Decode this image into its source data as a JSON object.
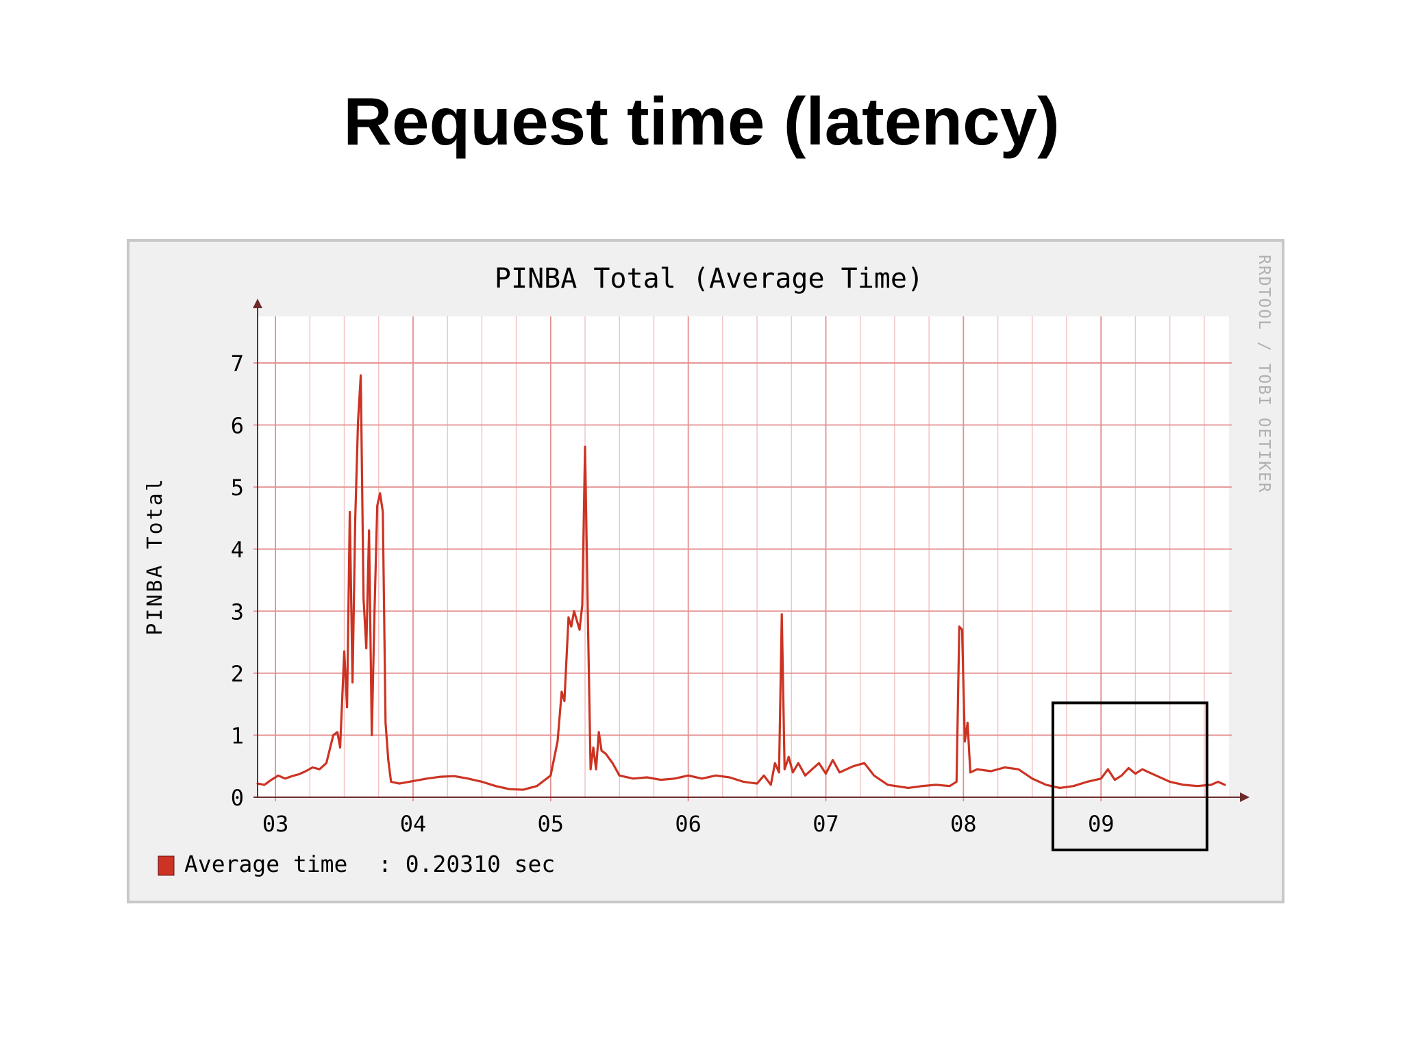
{
  "slide": {
    "title": "Request time (latency)"
  },
  "chart_data": {
    "type": "line",
    "title": "PINBA Total (Average Time)",
    "ylabel": "PINBA Total",
    "xlabel": "",
    "watermark": "RRDTOOL / TOBI OETIKER",
    "ylim": [
      0,
      7.75
    ],
    "xlim": [
      2.87,
      9.93
    ],
    "yticks": [
      "0",
      "1",
      "2",
      "3",
      "4",
      "5",
      "6",
      "7"
    ],
    "xticks": [
      "03",
      "04",
      "05",
      "06",
      "07",
      "08",
      "09"
    ],
    "grid": true,
    "colors": {
      "line": "#cc3322",
      "major_grid": "#e48e8e",
      "minor_grid": "#f2c4c4",
      "axis": "#6e2a2a",
      "plot_bg": "#ffffff",
      "canvas_bg": "#f0f0f0",
      "highlight_box": "#000000"
    },
    "legend": {
      "position": "bottom-left",
      "label": "Average time",
      "value_text": ": 0.20310 sec",
      "color": "#cc3322"
    },
    "highlight": {
      "x_range": [
        8.65,
        9.77
      ],
      "y_range": [
        -0.85,
        1.52
      ]
    },
    "series": [
      {
        "name": "Average time",
        "points": [
          [
            2.87,
            0.22
          ],
          [
            2.92,
            0.2
          ],
          [
            2.97,
            0.28
          ],
          [
            3.02,
            0.35
          ],
          [
            3.07,
            0.3
          ],
          [
            3.12,
            0.34
          ],
          [
            3.17,
            0.37
          ],
          [
            3.22,
            0.42
          ],
          [
            3.27,
            0.48
          ],
          [
            3.32,
            0.45
          ],
          [
            3.37,
            0.55
          ],
          [
            3.42,
            1.0
          ],
          [
            3.45,
            1.05
          ],
          [
            3.47,
            0.8
          ],
          [
            3.5,
            2.35
          ],
          [
            3.52,
            1.45
          ],
          [
            3.54,
            4.6
          ],
          [
            3.56,
            1.85
          ],
          [
            3.58,
            4.5
          ],
          [
            3.6,
            6.05
          ],
          [
            3.62,
            6.8
          ],
          [
            3.64,
            3.2
          ],
          [
            3.66,
            2.4
          ],
          [
            3.68,
            4.3
          ],
          [
            3.7,
            1.0
          ],
          [
            3.72,
            3.0
          ],
          [
            3.74,
            4.7
          ],
          [
            3.76,
            4.9
          ],
          [
            3.78,
            4.6
          ],
          [
            3.8,
            1.2
          ],
          [
            3.82,
            0.6
          ],
          [
            3.84,
            0.25
          ],
          [
            3.9,
            0.22
          ],
          [
            4.0,
            0.26
          ],
          [
            4.1,
            0.3
          ],
          [
            4.2,
            0.33
          ],
          [
            4.3,
            0.34
          ],
          [
            4.4,
            0.3
          ],
          [
            4.5,
            0.25
          ],
          [
            4.6,
            0.18
          ],
          [
            4.7,
            0.13
          ],
          [
            4.8,
            0.12
          ],
          [
            4.9,
            0.18
          ],
          [
            5.0,
            0.35
          ],
          [
            5.05,
            0.9
          ],
          [
            5.08,
            1.7
          ],
          [
            5.1,
            1.55
          ],
          [
            5.13,
            2.9
          ],
          [
            5.15,
            2.75
          ],
          [
            5.17,
            3.0
          ],
          [
            5.19,
            2.85
          ],
          [
            5.21,
            2.7
          ],
          [
            5.23,
            3.1
          ],
          [
            5.25,
            5.65
          ],
          [
            5.27,
            3.0
          ],
          [
            5.29,
            0.45
          ],
          [
            5.31,
            0.8
          ],
          [
            5.33,
            0.45
          ],
          [
            5.35,
            1.05
          ],
          [
            5.37,
            0.75
          ],
          [
            5.4,
            0.7
          ],
          [
            5.45,
            0.55
          ],
          [
            5.5,
            0.35
          ],
          [
            5.6,
            0.3
          ],
          [
            5.7,
            0.32
          ],
          [
            5.8,
            0.28
          ],
          [
            5.9,
            0.3
          ],
          [
            6.0,
            0.35
          ],
          [
            6.1,
            0.3
          ],
          [
            6.2,
            0.35
          ],
          [
            6.3,
            0.32
          ],
          [
            6.4,
            0.25
          ],
          [
            6.5,
            0.22
          ],
          [
            6.55,
            0.35
          ],
          [
            6.6,
            0.2
          ],
          [
            6.63,
            0.55
          ],
          [
            6.66,
            0.4
          ],
          [
            6.68,
            2.95
          ],
          [
            6.7,
            0.45
          ],
          [
            6.73,
            0.65
          ],
          [
            6.76,
            0.4
          ],
          [
            6.8,
            0.55
          ],
          [
            6.85,
            0.35
          ],
          [
            6.9,
            0.45
          ],
          [
            6.95,
            0.55
          ],
          [
            7.0,
            0.38
          ],
          [
            7.05,
            0.6
          ],
          [
            7.1,
            0.4
          ],
          [
            7.15,
            0.45
          ],
          [
            7.2,
            0.5
          ],
          [
            7.28,
            0.55
          ],
          [
            7.35,
            0.35
          ],
          [
            7.45,
            0.2
          ],
          [
            7.6,
            0.15
          ],
          [
            7.7,
            0.18
          ],
          [
            7.8,
            0.2
          ],
          [
            7.9,
            0.18
          ],
          [
            7.95,
            0.25
          ],
          [
            7.97,
            2.75
          ],
          [
            7.99,
            2.7
          ],
          [
            8.01,
            0.9
          ],
          [
            8.03,
            1.2
          ],
          [
            8.05,
            0.4
          ],
          [
            8.1,
            0.45
          ],
          [
            8.2,
            0.42
          ],
          [
            8.3,
            0.48
          ],
          [
            8.4,
            0.45
          ],
          [
            8.5,
            0.3
          ],
          [
            8.6,
            0.2
          ],
          [
            8.7,
            0.15
          ],
          [
            8.8,
            0.18
          ],
          [
            8.9,
            0.25
          ],
          [
            9.0,
            0.3
          ],
          [
            9.05,
            0.45
          ],
          [
            9.1,
            0.28
          ],
          [
            9.15,
            0.35
          ],
          [
            9.2,
            0.47
          ],
          [
            9.25,
            0.38
          ],
          [
            9.3,
            0.45
          ],
          [
            9.35,
            0.4
          ],
          [
            9.4,
            0.35
          ],
          [
            9.5,
            0.25
          ],
          [
            9.6,
            0.2
          ],
          [
            9.7,
            0.18
          ],
          [
            9.8,
            0.2
          ],
          [
            9.85,
            0.25
          ],
          [
            9.9,
            0.2
          ]
        ]
      }
    ]
  }
}
